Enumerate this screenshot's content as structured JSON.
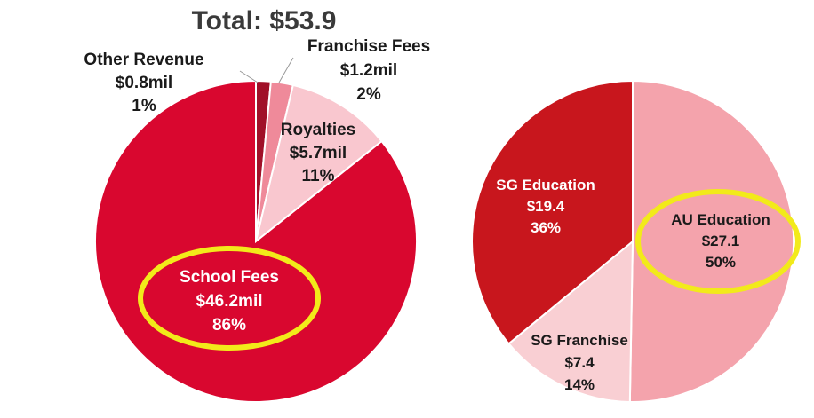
{
  "chart_data": [
    {
      "type": "pie",
      "title": "Total: $53.9",
      "slices": [
        {
          "label": "Other Revenue",
          "amount": "$0.8mil",
          "percent_label": "1%",
          "value": 0.8,
          "color": "#a01028"
        },
        {
          "label": "Franchise Fees",
          "amount": "$1.2mil",
          "percent_label": "2%",
          "value": 1.2,
          "color": "#ef8a9a"
        },
        {
          "label": "Royalties",
          "amount": "$5.7mil",
          "percent_label": "11%",
          "value": 5.7,
          "color": "#f9c7cf"
        },
        {
          "label": "School Fees",
          "amount": "$46.2mil",
          "percent_label": "86%",
          "value": 46.2,
          "color": "#d9072f",
          "highlighted": true
        }
      ]
    },
    {
      "type": "pie",
      "title": "",
      "slices": [
        {
          "label": "AU Education",
          "amount": "$27.1",
          "percent_label": "50%",
          "value": 27.1,
          "color": "#f4a3ac",
          "highlighted": true
        },
        {
          "label": "SG Franchise",
          "amount": "$7.4",
          "percent_label": "14%",
          "value": 7.4,
          "color": "#f9cfd3"
        },
        {
          "label": "SG Education",
          "amount": "$19.4",
          "percent_label": "36%",
          "value": 19.4,
          "color": "#c8161d"
        }
      ]
    }
  ],
  "highlight_color": "#f2ea1a"
}
